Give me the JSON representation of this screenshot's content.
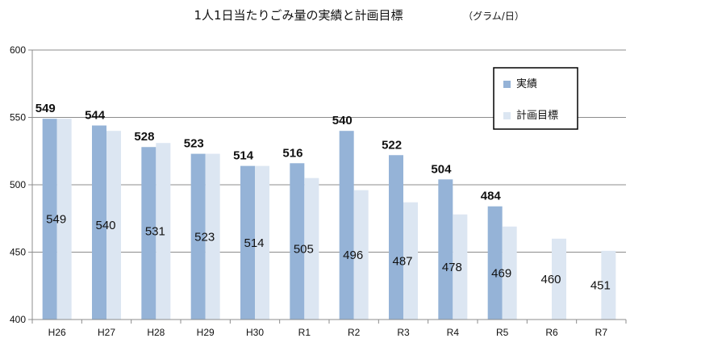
{
  "chart_data": {
    "type": "bar",
    "title": "1人1日当たりごみ量の実績と計画目標",
    "subtitle": "（グラム/日）",
    "categories": [
      "H26",
      "H27",
      "H28",
      "H29",
      "H30",
      "R1",
      "R2",
      "R3",
      "R4",
      "R5",
      "R6",
      "R7"
    ],
    "series": [
      {
        "name": "実績",
        "values": [
          549,
          544,
          528,
          523,
          514,
          516,
          540,
          522,
          504,
          484,
          null,
          null
        ],
        "color": "#95B3D7"
      },
      {
        "name": "計画目標",
        "values": [
          549,
          540,
          531,
          523,
          514,
          505,
          496,
          487,
          478,
          469,
          460,
          451
        ],
        "color": "#DCE6F2"
      }
    ],
    "ylim": [
      400,
      600
    ],
    "yticks": [
      400,
      450,
      500,
      550,
      600
    ],
    "grid": true,
    "legend": "top-right"
  }
}
